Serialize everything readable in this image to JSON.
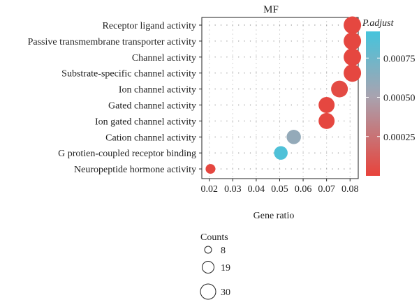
{
  "chart_data": {
    "type": "scatter",
    "title": "MF",
    "xlabel": "Gene ratio",
    "ylabel": "",
    "x_ticks": [
      "0.02",
      "0.03",
      "0.04",
      "0.05",
      "0.06",
      "0.07",
      "0.08"
    ],
    "xlim": [
      0.0168,
      0.0835
    ],
    "grid": true,
    "categories": [
      "Receptor ligand activity",
      "Passive transmembrane transporter activity",
      "Channel activity",
      "Substrate-specific channel activity",
      "Ion channel activity",
      "Gated channel activity",
      "Ion gated channel activity",
      "Cation channel activity",
      "G protien-coupled receptor binding",
      "Neuropeptide hormone activity"
    ],
    "points": [
      {
        "category": "Receptor ligand activity",
        "gene_ratio": 0.081,
        "count": 30,
        "p_adjust": 2e-05
      },
      {
        "category": "Passive transmembrane transporter activity",
        "gene_ratio": 0.081,
        "count": 30,
        "p_adjust": 2e-05
      },
      {
        "category": "Channel activity",
        "gene_ratio": 0.081,
        "count": 30,
        "p_adjust": 2e-05
      },
      {
        "category": "Substrate-specific channel activity",
        "gene_ratio": 0.081,
        "count": 30,
        "p_adjust": 2e-05
      },
      {
        "category": "Ion channel activity",
        "gene_ratio": 0.0755,
        "count": 28,
        "p_adjust": 4e-05
      },
      {
        "category": "Gated channel activity",
        "gene_ratio": 0.07,
        "count": 26,
        "p_adjust": 2e-05
      },
      {
        "category": "Ion gated channel activity",
        "gene_ratio": 0.07,
        "count": 26,
        "p_adjust": 2e-05
      },
      {
        "category": "Cation channel activity",
        "gene_ratio": 0.056,
        "count": 21,
        "p_adjust": 0.00059
      },
      {
        "category": "G protien-coupled receptor binding",
        "gene_ratio": 0.0505,
        "count": 19,
        "p_adjust": 0.00088
      },
      {
        "category": "Neuropeptide hormone activity",
        "gene_ratio": 0.0205,
        "count": 8,
        "p_adjust": 2e-05
      }
    ],
    "color_legend": {
      "title": "P.adjust",
      "ticks": [
        "0.00075",
        "0.00050",
        "0.00025"
      ],
      "tick_values": [
        0.00075,
        0.0005,
        0.00025
      ],
      "range": [
        0.0,
        0.00092
      ],
      "low_color": "#e8433b",
      "mid_color": "#a8a3b0",
      "high_color": "#45c4dc"
    },
    "size_legend": {
      "title": "Counts",
      "values": [
        8,
        19,
        30
      ],
      "labels": [
        "8",
        "19",
        "30"
      ]
    }
  }
}
